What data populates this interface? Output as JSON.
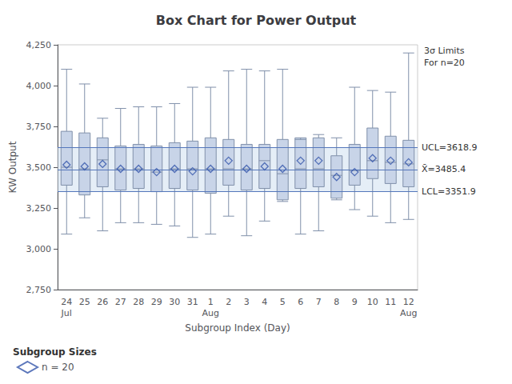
{
  "chart_data": {
    "type": "boxplot",
    "title": "Box Chart for Power Output",
    "x_label": "Subgroup Index (Day)",
    "y_label": "KW Output",
    "ylim": [
      2750,
      4250
    ],
    "yticks": [
      2750,
      3000,
      3250,
      3500,
      3750,
      4000,
      4250
    ],
    "grid": false,
    "categories": [
      "24",
      "25",
      "26",
      "27",
      "28",
      "29",
      "30",
      "31",
      "1",
      "2",
      "3",
      "4",
      "5",
      "6",
      "7",
      "8",
      "9",
      "10",
      "11",
      "12"
    ],
    "month_labels": [
      "Jul",
      null,
      null,
      null,
      null,
      null,
      null,
      null,
      "Aug",
      null,
      null,
      null,
      null,
      null,
      null,
      null,
      null,
      null,
      null,
      "Aug"
    ],
    "series": [
      {
        "type": "boxplot",
        "color": "#c8d4e8",
        "edge_color": "#8090aa",
        "boxes": [
          {
            "low": 3090,
            "q1": 3390,
            "median": 3500,
            "q3": 3720,
            "high": 4100
          },
          {
            "low": 3190,
            "q1": 3330,
            "median": 3490,
            "q3": 3710,
            "high": 4010
          },
          {
            "low": 3110,
            "q1": 3380,
            "median": 3545,
            "q3": 3680,
            "high": 3800
          },
          {
            "low": 3160,
            "q1": 3360,
            "median": 3490,
            "q3": 3630,
            "high": 3860
          },
          {
            "low": 3160,
            "q1": 3370,
            "median": 3490,
            "q3": 3640,
            "high": 3870
          },
          {
            "low": 3150,
            "q1": 3350,
            "median": 3470,
            "q3": 3630,
            "high": 3870
          },
          {
            "low": 3140,
            "q1": 3370,
            "median": 3490,
            "q3": 3650,
            "high": 3890
          },
          {
            "low": 3070,
            "q1": 3360,
            "median": 3490,
            "q3": 3660,
            "high": 3990
          },
          {
            "low": 3090,
            "q1": 3340,
            "median": 3490,
            "q3": 3680,
            "high": 3990
          },
          {
            "low": 3200,
            "q1": 3390,
            "median": 3490,
            "q3": 3670,
            "high": 4090
          },
          {
            "low": 3080,
            "q1": 3360,
            "median": 3490,
            "q3": 3640,
            "high": 4100
          },
          {
            "low": 3170,
            "q1": 3370,
            "median": 3540,
            "q3": 3640,
            "high": 4090
          },
          {
            "low": 3290,
            "q1": 3300,
            "median": 3460,
            "q3": 3670,
            "high": 4100
          },
          {
            "low": 3090,
            "q1": 3370,
            "median": 3490,
            "q3": 3680,
            "high": 3670
          },
          {
            "low": 3110,
            "q1": 3380,
            "median": 3490,
            "q3": 3680,
            "high": 3700
          },
          {
            "low": 3300,
            "q1": 3310,
            "median": 3450,
            "q3": 3570,
            "high": 3680
          },
          {
            "low": 3240,
            "q1": 3390,
            "median": 3480,
            "q3": 3640,
            "high": 3990
          },
          {
            "low": 3200,
            "q1": 3430,
            "median": 3540,
            "q3": 3740,
            "high": 3970
          },
          {
            "low": 3160,
            "q1": 3400,
            "median": 3530,
            "q3": 3690,
            "high": 3960
          },
          {
            "low": 3180,
            "q1": 3380,
            "median": 3520,
            "q3": 3665,
            "high": 4200
          }
        ]
      },
      {
        "type": "scatter",
        "name": "n = 20",
        "marker": "diamond",
        "color": "#3355aa",
        "values": [
          3515,
          3505,
          3520,
          3490,
          3490,
          3470,
          3490,
          3475,
          3490,
          3540,
          3490,
          3505,
          3490,
          3540,
          3540,
          3440,
          3470,
          3555,
          3540,
          3530
        ]
      }
    ],
    "reference_lines": [
      {
        "value": 3618.9,
        "label": "UCL=3618.9"
      },
      {
        "value": 3485.4,
        "label": "X̄=3485.4"
      },
      {
        "value": 3351.9,
        "label": "LCL=3351.9"
      }
    ],
    "reference_line_color": "#5577bb",
    "band": {
      "from": 3351.9,
      "to": 3618.9,
      "color": "#ccddf0"
    },
    "annotations": [
      "3σ Limits\nFor n=20"
    ],
    "legend": "lower left",
    "legend_title": "Subgroup Sizes"
  }
}
